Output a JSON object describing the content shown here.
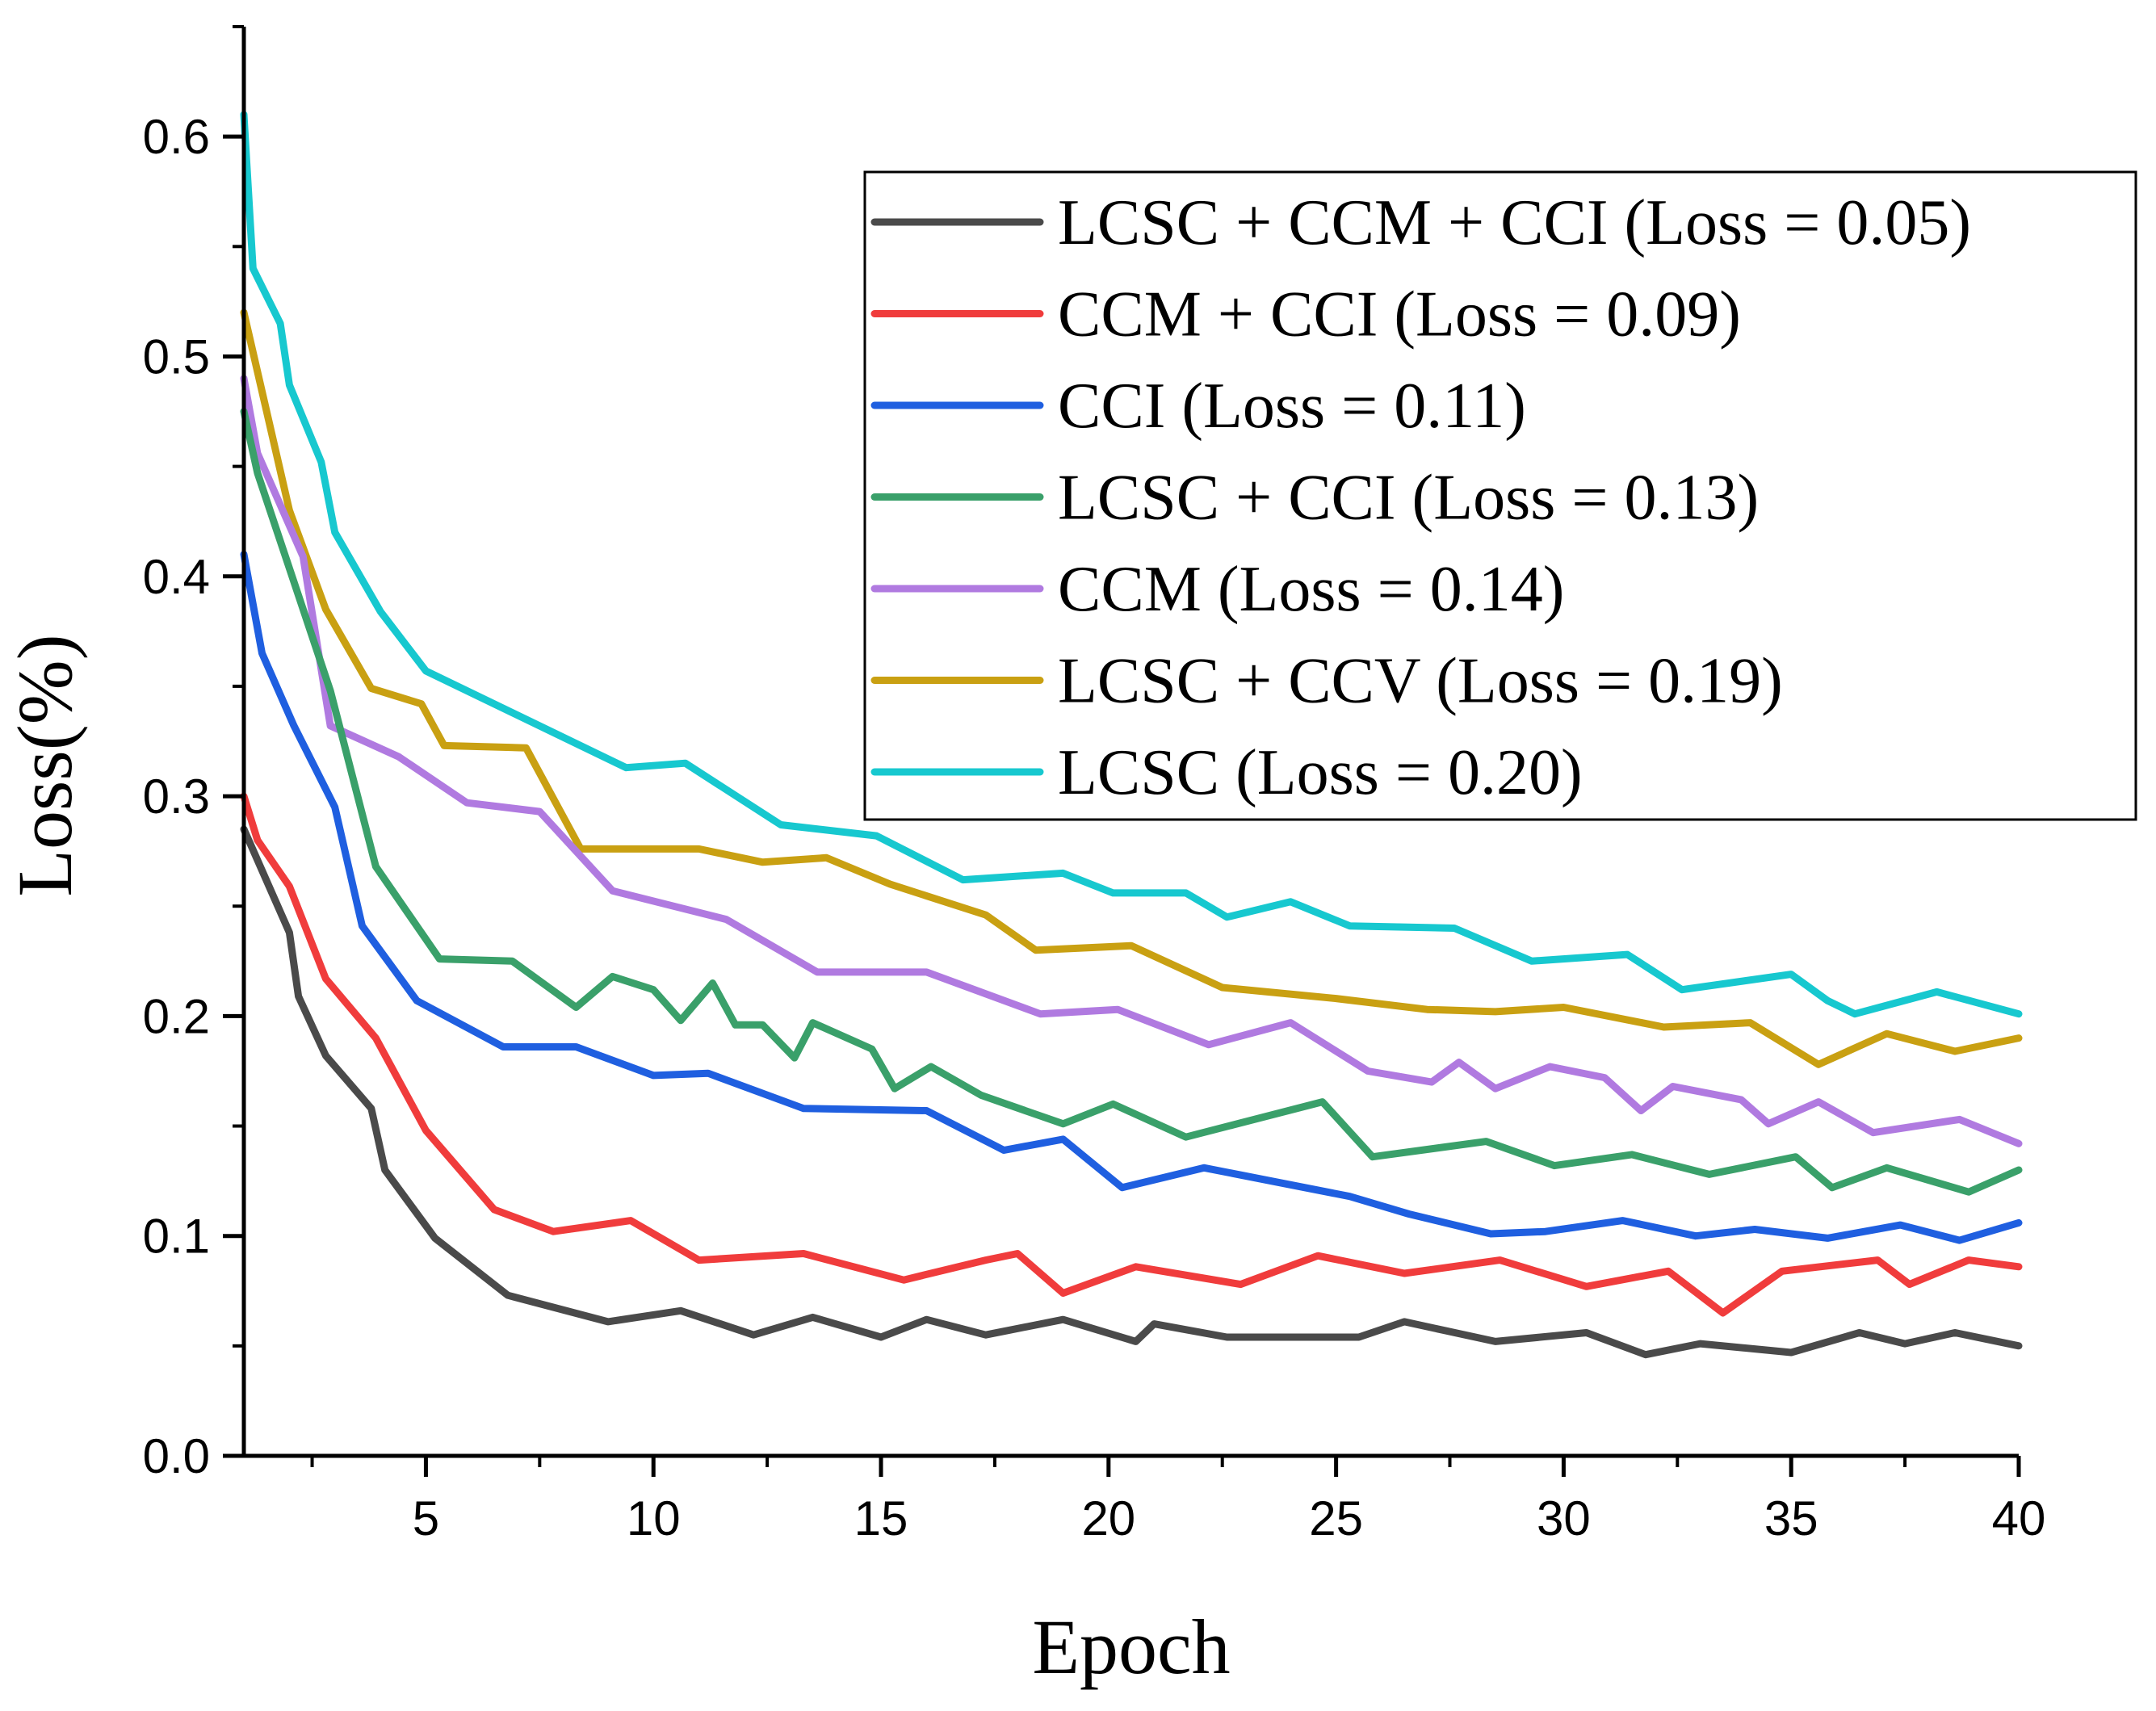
{
  "chart_data": {
    "type": "line",
    "title": "",
    "xlabel": "Epoch",
    "ylabel": "Loss(%)",
    "xlim": [
      1,
      40
    ],
    "ylim": [
      0,
      0.65
    ],
    "xticks": [
      5,
      10,
      15,
      20,
      25,
      30,
      35,
      40
    ],
    "yticks": [
      0.0,
      0.1,
      0.2,
      0.3,
      0.4,
      0.5,
      0.6
    ],
    "xtick_labels": [
      "5",
      "10",
      "15",
      "20",
      "25",
      "30",
      "35",
      "40"
    ],
    "ytick_labels": [
      "0.0",
      "0.1",
      "0.2",
      "0.3",
      "0.4",
      "0.5",
      "0.6"
    ],
    "legend_position": "top-right",
    "grid": false,
    "series": [
      {
        "name": "LCSC + CCM + CCI (Loss = 0.05)",
        "color": "#4a4a4a",
        "x": [
          1,
          2,
          2.2,
          2.8,
          3.8,
          4.1,
          5.2,
          6.8,
          9,
          10.6,
          12.2,
          13.5,
          15,
          16,
          17.3,
          19,
          20.6,
          21,
          22.6,
          25.5,
          26.5,
          28.5,
          30.5,
          31.8,
          33,
          35,
          36.5,
          37.5,
          38.6,
          40
        ],
        "y": [
          0.285,
          0.238,
          0.209,
          0.182,
          0.158,
          0.13,
          0.099,
          0.073,
          0.061,
          0.066,
          0.055,
          0.063,
          0.054,
          0.062,
          0.055,
          0.062,
          0.052,
          0.06,
          0.054,
          0.054,
          0.061,
          0.052,
          0.056,
          0.046,
          0.051,
          0.047,
          0.056,
          0.051,
          0.056,
          0.05
        ]
      },
      {
        "name": "CCM + CCI (Loss = 0.09)",
        "color": "#f03c3c",
        "x": [
          1,
          1.3,
          2,
          2.8,
          3.9,
          5,
          6.5,
          7.8,
          9.5,
          11,
          13.3,
          15.5,
          17.3,
          18,
          19,
          20.6,
          22.9,
          24.6,
          26.5,
          28.6,
          30.5,
          32.3,
          33.5,
          34.8,
          36.9,
          37.6,
          38.9,
          40
        ],
        "y": [
          0.3,
          0.28,
          0.259,
          0.217,
          0.19,
          0.148,
          0.112,
          0.102,
          0.107,
          0.089,
          0.092,
          0.08,
          0.089,
          0.092,
          0.074,
          0.086,
          0.078,
          0.091,
          0.083,
          0.089,
          0.077,
          0.084,
          0.065,
          0.084,
          0.089,
          0.078,
          0.089,
          0.086
        ]
      },
      {
        "name": "CCI  (Loss = 0.11)",
        "color": "#1f5fe0",
        "x": [
          1,
          1.4,
          2.1,
          3,
          3.6,
          4.8,
          6.7,
          8.3,
          10,
          11.2,
          13.3,
          16,
          17.7,
          19,
          20.3,
          22.1,
          25.3,
          26.6,
          28.4,
          29.6,
          31.3,
          32.9,
          34.2,
          35.8,
          37.4,
          38.7,
          40
        ],
        "y": [
          0.41,
          0.365,
          0.332,
          0.295,
          0.241,
          0.207,
          0.186,
          0.186,
          0.173,
          0.174,
          0.158,
          0.157,
          0.139,
          0.144,
          0.122,
          0.131,
          0.118,
          0.11,
          0.101,
          0.102,
          0.107,
          0.1,
          0.103,
          0.099,
          0.105,
          0.098,
          0.106
        ]
      },
      {
        "name": "LCSC + CCI (Loss = 0.13)",
        "color": "#3aa06a",
        "x": [
          1,
          1.3,
          2.9,
          3.9,
          5.3,
          6.9,
          8.3,
          9.1,
          10,
          10.6,
          11.3,
          11.8,
          12.4,
          13.1,
          13.5,
          14.8,
          15.3,
          16.1,
          17.2,
          19,
          20.1,
          21.7,
          24.7,
          25.8,
          28.3,
          29.8,
          31.5,
          33.2,
          35.1,
          35.9,
          37.1,
          38.9,
          40
        ],
        "y": [
          0.475,
          0.447,
          0.348,
          0.268,
          0.226,
          0.225,
          0.204,
          0.218,
          0.212,
          0.198,
          0.215,
          0.196,
          0.196,
          0.181,
          0.197,
          0.185,
          0.167,
          0.177,
          0.164,
          0.151,
          0.16,
          0.145,
          0.161,
          0.136,
          0.143,
          0.132,
          0.137,
          0.128,
          0.136,
          0.122,
          0.131,
          0.12,
          0.13
        ]
      },
      {
        "name": "CCM (Loss = 0.14)",
        "color": "#b07ae0",
        "x": [
          1,
          1.3,
          2.3,
          2.9,
          4.4,
          5.9,
          7.5,
          9.1,
          11.6,
          13.6,
          16,
          18.5,
          20.2,
          22.2,
          24,
          25.7,
          27.1,
          27.7,
          28.5,
          29.7,
          30.9,
          31.7,
          32.4,
          33.9,
          34.5,
          35.6,
          36.8,
          38.7,
          40
        ],
        "y": [
          0.49,
          0.456,
          0.409,
          0.332,
          0.318,
          0.297,
          0.293,
          0.257,
          0.244,
          0.22,
          0.22,
          0.201,
          0.203,
          0.187,
          0.197,
          0.175,
          0.17,
          0.179,
          0.167,
          0.177,
          0.172,
          0.157,
          0.168,
          0.162,
          0.151,
          0.161,
          0.147,
          0.153,
          0.142
        ]
      },
      {
        "name": "LCSC + CCV (Loss = 0.19)",
        "color": "#c9a012",
        "x": [
          1,
          2,
          2.8,
          3.8,
          4.9,
          5.4,
          7.2,
          8.4,
          11,
          12.4,
          13.8,
          15.2,
          17.3,
          18.4,
          20.5,
          22.5,
          25,
          27,
          28.5,
          30,
          32.2,
          34.1,
          35.6,
          37.1,
          38.6,
          40
        ],
        "y": [
          0.52,
          0.43,
          0.385,
          0.349,
          0.342,
          0.323,
          0.322,
          0.276,
          0.276,
          0.27,
          0.272,
          0.26,
          0.246,
          0.23,
          0.232,
          0.213,
          0.208,
          0.203,
          0.202,
          0.204,
          0.195,
          0.197,
          0.178,
          0.192,
          0.184,
          0.19
        ]
      },
      {
        "name": "LCSC (Loss = 0.20)",
        "color": "#17c8cf",
        "x": [
          1,
          1.2,
          1.8,
          2,
          2.7,
          3,
          4,
          5,
          9.4,
          10.7,
          12.8,
          14.9,
          16.8,
          19,
          20.1,
          21.7,
          22.6,
          24,
          25.3,
          27.6,
          29.3,
          31.4,
          32.6,
          35,
          35.8,
          36.4,
          38.2,
          40
        ],
        "y": [
          0.61,
          0.54,
          0.515,
          0.487,
          0.452,
          0.42,
          0.384,
          0.357,
          0.313,
          0.315,
          0.287,
          0.282,
          0.262,
          0.265,
          0.256,
          0.256,
          0.245,
          0.252,
          0.241,
          0.24,
          0.225,
          0.228,
          0.212,
          0.219,
          0.207,
          0.201,
          0.211,
          0.201
        ]
      }
    ]
  }
}
